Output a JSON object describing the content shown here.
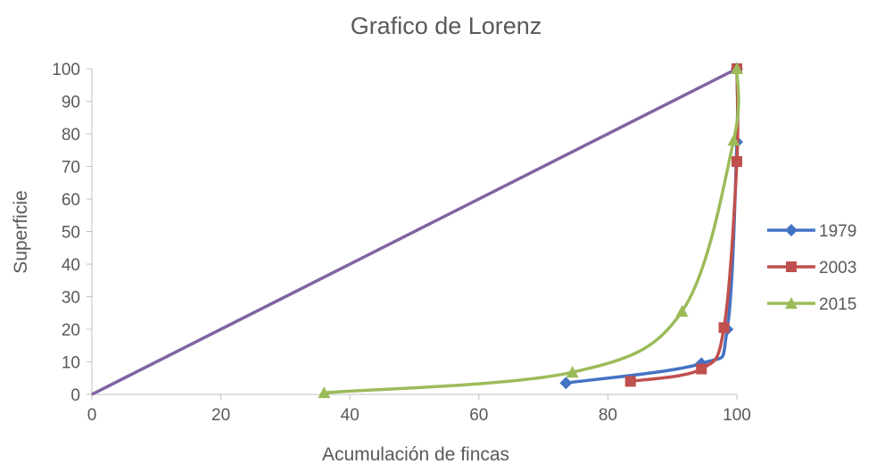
{
  "chart_data": {
    "type": "line",
    "title": "Grafico de Lorenz",
    "xlabel": "Acumulación de fincas",
    "ylabel": "Superficie",
    "xlim": [
      0,
      100
    ],
    "ylim": [
      0,
      100
    ],
    "x_ticks": [
      "0",
      "20",
      "40",
      "60",
      "80",
      "100"
    ],
    "y_ticks": [
      "0",
      "10",
      "20",
      "30",
      "40",
      "50",
      "60",
      "70",
      "80",
      "90",
      "100"
    ],
    "grid": false,
    "legend_position": "right",
    "series": [
      {
        "name": "1979",
        "color": "#4472C4",
        "marker": "diamond",
        "points": [
          [
            73.5,
            3.5
          ],
          [
            94.5,
            9.5
          ],
          [
            98.5,
            20
          ],
          [
            100,
            77.5
          ],
          [
            100,
            100
          ]
        ]
      },
      {
        "name": "2003",
        "color": "#C0504D",
        "marker": "square",
        "points": [
          [
            83.5,
            4
          ],
          [
            94.5,
            7.8
          ],
          [
            98,
            20.5
          ],
          [
            100,
            71.5
          ],
          [
            100,
            100
          ]
        ]
      },
      {
        "name": "2015",
        "color": "#9BBB59",
        "marker": "triangle",
        "points": [
          [
            36,
            0.5
          ],
          [
            74.5,
            6.8
          ],
          [
            91.5,
            25.5
          ],
          [
            99.5,
            78
          ],
          [
            100,
            100
          ]
        ]
      },
      {
        "color": "#8064A2",
        "marker": "none",
        "points": [
          [
            0,
            0
          ],
          [
            100,
            100
          ]
        ]
      }
    ]
  }
}
